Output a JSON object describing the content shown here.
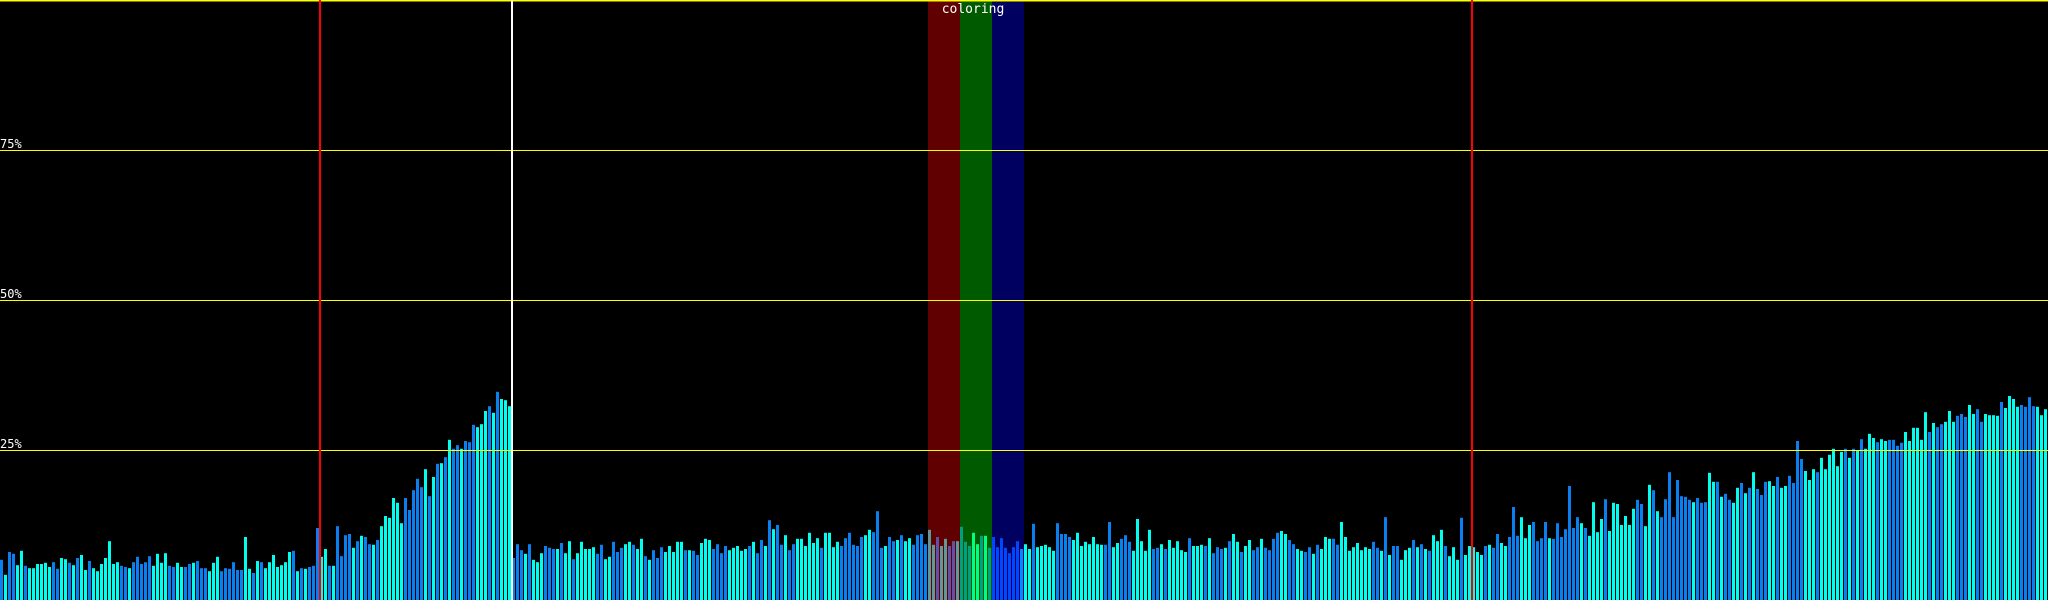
{
  "chart_data": {
    "type": "bar",
    "title": "coloring",
    "ylim": [
      0,
      100
    ],
    "y_gridlines": [
      25,
      50,
      75,
      100
    ],
    "y_tick_labels": [
      "25%",
      "50%",
      "75%"
    ],
    "grid": true,
    "bar_count": 512,
    "markers": {
      "red_lines_at_bar": [
        80,
        368
      ],
      "white_line_at_bar": 128
    },
    "bands": [
      {
        "channel": "red",
        "from_bar": 232,
        "to_bar": 239,
        "color": "#600000",
        "bar_colors": [
          "#6050a8",
          "#609898"
        ]
      },
      {
        "channel": "green",
        "from_bar": 240,
        "to_bar": 247,
        "color": "#005a00",
        "bar_colors": [
          "#00a080",
          "#00ff80"
        ]
      },
      {
        "channel": "blue",
        "from_bar": 248,
        "to_bar": 255,
        "color": "#000060",
        "bar_colors": [
          "#0048ff",
          "#0088ff"
        ]
      }
    ],
    "colors": {
      "bar_a": "#0a80f0",
      "bar_b": "#00ffee",
      "grid": "#ffff00",
      "red_marker": "#ff0000",
      "white_marker": "#ffffff",
      "background": "#000000"
    },
    "values": [
      6.7,
      4.2,
      8,
      7.7,
      5.8,
      8.2,
      5.7,
      5.3,
      5.3,
      6,
      6,
      6.2,
      5.5,
      6.3,
      5.2,
      7,
      6.8,
      6.2,
      5.8,
      7,
      7.5,
      5,
      6.5,
      5.3,
      4.8,
      6,
      7,
      9.8,
      6,
      6.3,
      5.7,
      5.5,
      5.3,
      6.3,
      7.2,
      6,
      6.3,
      7.3,
      5.7,
      7.7,
      6.2,
      7.8,
      5.7,
      5.5,
      6.2,
      5.5,
      5.5,
      6,
      6.2,
      6.5,
      5.3,
      5.3,
      4.8,
      6.2,
      7.2,
      4.8,
      5.3,
      5.2,
      6.3,
      5,
      5,
      10.5,
      5.2,
      4.5,
      6.5,
      6.3,
      5.3,
      6.3,
      7.5,
      5.5,
      5.8,
      6.3,
      8,
      8.2,
      4.8,
      5.3,
      5.2,
      5.5,
      5.7,
      12,
      7.2,
      8.5,
      5.7,
      5.7,
      12.3,
      7.3,
      10.8,
      11,
      8.7,
      9.8,
      10.7,
      10.5,
      9.3,
      9.2,
      10,
      12.3,
      14,
      13.7,
      17,
      16.2,
      12.8,
      17,
      15,
      18.3,
      20.2,
      18.8,
      21.8,
      17.3,
      20.5,
      22.7,
      22.8,
      23.8,
      26.7,
      25.2,
      25.8,
      25.2,
      26.5,
      26.3,
      29.2,
      28.8,
      29.3,
      31.5,
      32.3,
      31.2,
      34.7,
      33.5,
      33.3,
      32.3,
      7,
      9.3,
      8.3,
      7.7,
      9.3,
      6.7,
      6.3,
      7.8,
      9,
      8.7,
      8.5,
      8.5,
      9.5,
      7.8,
      9.8,
      6.8,
      7.8,
      9.7,
      8.5,
      8.5,
      8.8,
      7.7,
      9.2,
      6.8,
      7.2,
      9.7,
      8,
      8.7,
      9.3,
      9.7,
      9.2,
      8.5,
      10.2,
      7.3,
      6.7,
      8.3,
      7,
      8.8,
      8,
      9,
      8,
      9.7,
      9.7,
      8.3,
      8.3,
      8.2,
      7.5,
      9.5,
      10.2,
      10,
      8.5,
      9.3,
      7.8,
      9,
      8.3,
      8.7,
      9,
      8.2,
      8.5,
      9,
      9.7,
      7.8,
      10,
      9,
      13.3,
      11.8,
      12.5,
      9.2,
      10.8,
      8.3,
      9.3,
      10.2,
      10.2,
      9,
      11.2,
      9.5,
      10.3,
      8.7,
      11.2,
      11.2,
      8.8,
      9.7,
      9,
      10.3,
      11.2,
      9.2,
      9,
      10.5,
      10.8,
      11.7,
      11.3,
      14.8,
      8.7,
      9,
      10.5,
      9.8,
      10,
      10.8,
      9.8,
      10.3,
      9.2,
      10.8,
      11,
      9.3,
      11.7,
      9.2,
      10.5,
      9,
      10.2,
      9,
      9.8,
      9.8,
      12.2,
      9.7,
      9,
      11.2,
      9.3,
      10.7,
      10.7,
      8.7,
      10.5,
      8.8,
      10.3,
      8.7,
      7.8,
      8.8,
      9.8,
      8.5,
      9.3,
      8.5,
      12.7,
      8.8,
      9,
      9.2,
      8.8,
      8.2,
      12.8,
      11,
      11,
      10.5,
      10,
      11.2,
      9,
      9.7,
      9.3,
      10.5,
      9.3,
      9.2,
      9.2,
      13,
      8.8,
      9.5,
      10.2,
      10.8,
      9.7,
      8.2,
      13.5,
      9.8,
      8.2,
      11.7,
      8.5,
      8.7,
      9.3,
      8.5,
      10,
      8.7,
      9.8,
      8.3,
      8,
      10.3,
      9,
      9,
      9.2,
      9,
      10.3,
      7.8,
      8.8,
      8.5,
      8.7,
      9.8,
      11,
      9.7,
      8,
      9,
      10,
      8.3,
      8.8,
      10.2,
      8.7,
      8.3,
      10.2,
      11.2,
      11.5,
      11,
      10,
      9.3,
      8.5,
      8.2,
      8,
      8.8,
      7.7,
      9.2,
      8.5,
      10.5,
      10.2,
      10.2,
      9.2,
      13,
      10.5,
      8.2,
      8.8,
      9.5,
      8.3,
      8.8,
      8.5,
      9.7,
      8.7,
      8.2,
      13.8,
      7.5,
      9,
      9,
      6.7,
      8.3,
      8.7,
      10,
      8.8,
      9.3,
      8.5,
      8.2,
      10.8,
      9.8,
      11.7,
      9,
      7.3,
      8.8,
      6.7,
      13.7,
      7.5,
      9,
      8.8,
      8,
      7.5,
      9,
      9.2,
      8.7,
      11,
      9.5,
      9,
      10.5,
      15.5,
      10.7,
      13.8,
      10.3,
      12.5,
      13,
      9.8,
      10.3,
      13,
      10.3,
      10.2,
      12.8,
      10.5,
      11.8,
      19,
      12,
      13.8,
      12.8,
      12,
      10.7,
      16.3,
      11.3,
      13.5,
      16.8,
      11.5,
      16.2,
      16,
      12.5,
      14,
      12.5,
      15.2,
      16.7,
      16,
      12.3,
      19.2,
      18.3,
      14.8,
      13.8,
      16.8,
      21.3,
      13.8,
      20,
      17.3,
      17.2,
      16.7,
      16.3,
      17,
      16.2,
      16.3,
      21.2,
      19.7,
      19.7,
      17.2,
      17.7,
      16.7,
      16.2,
      18.7,
      19.5,
      17.8,
      18.7,
      21.3,
      18.5,
      17.5,
      19.7,
      19.8,
      19,
      20.5,
      18.7,
      19,
      20.7,
      19.5,
      26.5,
      23.5,
      21.5,
      20,
      21.8,
      21.3,
      23.7,
      21.8,
      24.2,
      25.2,
      22.3,
      24.7,
      25.2,
      23.7,
      25.2,
      25,
      26.8,
      25.2,
      27.7,
      27,
      26.3,
      26.8,
      26.5,
      26.7,
      26.7,
      25.7,
      26.2,
      28,
      26.5,
      28.7,
      28.7,
      26.7,
      31.3,
      28,
      29.5,
      28.8,
      29.3,
      29.7,
      31.5,
      29.7,
      30.7,
      31,
      30.5,
      32.5,
      31,
      31.8,
      29.7,
      31,
      30.8,
      30.8,
      30.7,
      33,
      32,
      34,
      33.5,
      32.2,
      32.5,
      32.2,
      33.8,
      32.3,
      32.2,
      30.8,
      31.8
    ]
  }
}
